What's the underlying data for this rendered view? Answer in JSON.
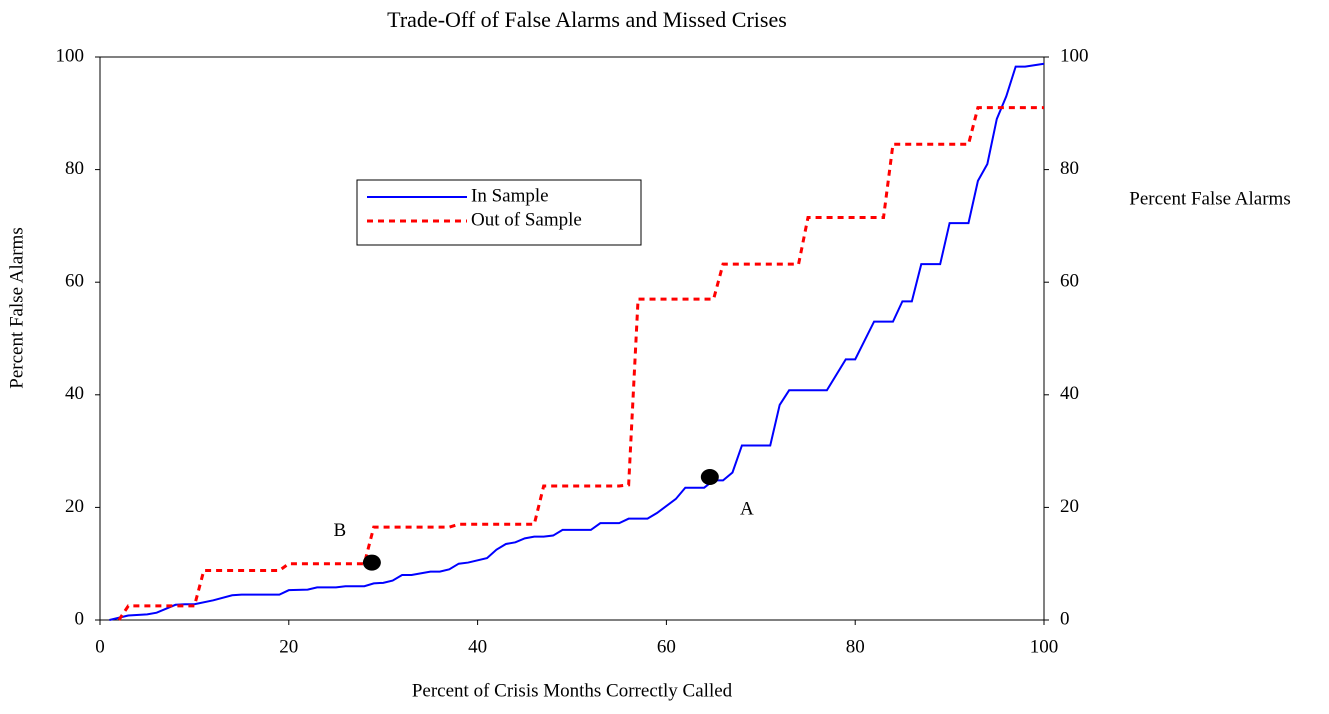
{
  "chart_data": {
    "type": "line",
    "title": "Trade-Off of False Alarms and Missed Crises",
    "xlabel": "Percent of Crisis Months Correctly Called",
    "ylabel": "Percent False Alarms",
    "y2label": "Percent False Alarms",
    "xlim": [
      0,
      100
    ],
    "xticks": [
      0,
      20,
      40,
      60,
      80,
      100
    ],
    "ylim": [
      0,
      100
    ],
    "yticks": [
      0,
      20,
      40,
      60,
      80,
      100
    ],
    "y2lim": [
      0,
      100
    ],
    "y2ticks": [
      0,
      20,
      40,
      60,
      80,
      100
    ],
    "grid": false,
    "series": [
      {
        "name": "In Sample",
        "color": "#0000ff",
        "dash": false,
        "x": [
          1,
          3,
          5,
          6,
          8,
          9,
          10,
          12,
          14,
          15,
          19,
          20,
          22,
          23,
          25,
          26,
          28,
          29,
          30,
          31,
          32,
          33,
          35,
          36,
          37,
          38,
          39,
          41,
          42,
          43,
          44,
          45,
          46,
          47,
          48,
          49,
          52,
          53,
          55,
          56,
          58,
          59,
          61,
          62,
          64,
          65,
          66,
          67,
          68,
          71,
          72,
          73,
          77,
          79,
          80,
          82,
          84,
          85,
          86,
          87,
          89,
          90,
          92,
          93,
          94,
          95,
          96,
          97,
          98,
          100
        ],
        "values": [
          0,
          0.8,
          1,
          1.3,
          2.7,
          2.8,
          2.8,
          3.5,
          4.4,
          4.5,
          4.5,
          5.3,
          5.4,
          5.8,
          5.8,
          6,
          6,
          6.5,
          6.6,
          7,
          8,
          8,
          8.6,
          8.6,
          9,
          10,
          10.2,
          11,
          12.5,
          13.5,
          13.8,
          14.5,
          14.8,
          14.8,
          15,
          16,
          16,
          17.2,
          17.2,
          18,
          18,
          19,
          21.5,
          23.5,
          23.5,
          24.8,
          24.8,
          26.2,
          31,
          31,
          38.2,
          40.8,
          40.8,
          46.3,
          46.3,
          53,
          53,
          56.6,
          56.6,
          63.2,
          63.2,
          70.5,
          70.5,
          78,
          81,
          89,
          93,
          98.3,
          98.3,
          98.8
        ]
      },
      {
        "name": "Out of Sample",
        "color": "#ff0000",
        "dash": true,
        "x": [
          2,
          3,
          10,
          11,
          19,
          20,
          28,
          29,
          37,
          38,
          46,
          47,
          55,
          56,
          57,
          65,
          66,
          74,
          75,
          83,
          84,
          92,
          93,
          100
        ],
        "values": [
          0,
          2.5,
          2.5,
          8.8,
          8.8,
          10,
          10,
          16.5,
          16.5,
          17,
          17,
          23.8,
          23.8,
          24,
          57,
          57,
          63.2,
          63.2,
          71.5,
          71.5,
          84.5,
          84.5,
          91,
          91
        ]
      }
    ],
    "annotations": [
      {
        "text": "B",
        "x": 28.8,
        "y": 10.2
      },
      {
        "text": "A",
        "x": 64.6,
        "y": 25.4
      }
    ]
  }
}
